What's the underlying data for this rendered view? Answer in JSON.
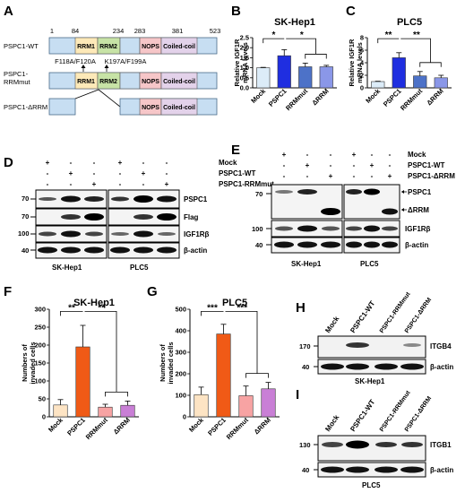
{
  "panels": {
    "A": "A",
    "B": "B",
    "C": "C",
    "D": "D",
    "E": "E",
    "F": "F",
    "G": "G",
    "H": "H",
    "I": "I"
  },
  "domains": {
    "wt_label": "PSPC1-WT",
    "mut_label_1": "PSPC1-",
    "mut_label_2": "RRMmut",
    "drrm_label": "PSPC1-ΔRRM",
    "positions": [
      "1",
      "84",
      "234",
      "283",
      "381",
      "523"
    ],
    "rrm1": "RRM1",
    "rrm2": "RRM2",
    "nops": "NOPS",
    "coiled": "Coiled-coil",
    "mut1": "F118A/F120A",
    "mut2": "K197A/F199A",
    "colors": {
      "rrm1": "#fde9b8",
      "rrm2": "#c7e3a6",
      "nops": "#f6c6c8",
      "coiled": "#e3d2ea",
      "bar": "#c7def2"
    }
  },
  "blots": {
    "D": {
      "rows": [
        "Mock",
        "PSPC1-WT",
        "PSPC1-RRMmut"
      ],
      "signs": [
        [
          "+",
          "-",
          "-",
          "+",
          "-",
          "-"
        ],
        [
          "-",
          "+",
          "-",
          "-",
          "+",
          "-"
        ],
        [
          "-",
          "-",
          "+",
          "-",
          "-",
          "+"
        ]
      ],
      "mw": [
        "70",
        "70",
        "100",
        "40"
      ],
      "bands": [
        "PSPC1",
        "Flag",
        "IGF1Rβ",
        "β-actin"
      ],
      "cells": [
        "SK-Hep1",
        "PLC5"
      ]
    },
    "E": {
      "rows": [
        "Mock",
        "PSPC1-WT",
        "PSPC1-ΔRRM"
      ],
      "signs": [
        [
          "+",
          "-",
          "-",
          "+",
          "-",
          "-"
        ],
        [
          "-",
          "+",
          "-",
          "-",
          "+",
          "-"
        ],
        [
          "-",
          "-",
          "+",
          "-",
          "-",
          "+"
        ]
      ],
      "mw": [
        "70",
        "100",
        "40"
      ],
      "bands": [
        "PSPC1",
        "ΔRRM",
        "IGF1Rβ",
        "β-actin"
      ],
      "cells": [
        "SK-Hep1",
        "PLC5"
      ]
    },
    "H": {
      "lanes": [
        "Mock",
        "PSPC1-WT",
        "PSPC1-RRMmut",
        "PSPC1-ΔRRM"
      ],
      "mw": [
        "170",
        "40"
      ],
      "bands": [
        "ITGB4",
        "β-actin"
      ],
      "cell": "SK-Hep1"
    },
    "I": {
      "lanes": [
        "Mock",
        "PSPC1-WT",
        "PSPC1-RRMmut",
        "PSPC1-ΔRRM"
      ],
      "mw": [
        "130",
        "40"
      ],
      "bands": [
        "ITGB1",
        "β-actin"
      ],
      "cell": "PLC5"
    }
  },
  "chart_data": [
    {
      "panel": "B",
      "type": "bar",
      "title": "SK-Hep1",
      "ylabel": "Relative IGF1R mRNA levels",
      "categories": [
        "Mock",
        "PSPC1",
        "RRMmut",
        "ΔRRM"
      ],
      "values": [
        1.0,
        1.6,
        1.05,
        1.05
      ],
      "errors": [
        0.02,
        0.3,
        0.18,
        0.07
      ],
      "ylim": [
        0,
        2.5
      ],
      "yticks": [
        "0.0",
        "0.5",
        "1.0",
        "1.5",
        "2.0",
        "2.5"
      ],
      "colors": [
        "#dcecf8",
        "#1f2ee0",
        "#4d72c8",
        "#8a97e8"
      ],
      "significance": [
        "*",
        "*"
      ]
    },
    {
      "panel": "C",
      "type": "bar",
      "title": "PLC5",
      "ylabel": "Relative IGF1R mRNA levels",
      "categories": [
        "Mock",
        "PSPC1",
        "RRMmut",
        "ΔRRM"
      ],
      "values": [
        1.0,
        4.8,
        1.9,
        1.6
      ],
      "errors": [
        0.05,
        0.8,
        0.7,
        0.4
      ],
      "ylim": [
        0,
        8
      ],
      "yticks": [
        "0",
        "2",
        "4",
        "6",
        "8"
      ],
      "colors": [
        "#dcecf8",
        "#1f2ee0",
        "#4d72c8",
        "#8a97e8"
      ],
      "significance": [
        "**",
        "**"
      ]
    },
    {
      "panel": "F",
      "type": "bar",
      "title": "SK-Hep1",
      "ylabel": "Numbers of invaded cells",
      "categories": [
        "Mock",
        "PSPC1",
        "RRMmut",
        "ΔRRM"
      ],
      "values": [
        33,
        195,
        27,
        32
      ],
      "errors": [
        15,
        60,
        8,
        12
      ],
      "ylim": [
        0,
        300
      ],
      "yticks": [
        "0",
        "50",
        "100",
        "150",
        "200",
        "250",
        "300"
      ],
      "colors": [
        "#fde4c4",
        "#f05a16",
        "#f7a3a3",
        "#c97fd6"
      ],
      "significance": [
        "**",
        "**"
      ]
    },
    {
      "panel": "G",
      "type": "bar",
      "title": "PLC5",
      "ylabel": "Numbers of invaded cells",
      "categories": [
        "Mock",
        "PSPC1",
        "RRMmut",
        "ΔRRM"
      ],
      "values": [
        103,
        385,
        98,
        130
      ],
      "errors": [
        35,
        45,
        45,
        30
      ],
      "ylim": [
        0,
        500
      ],
      "yticks": [
        "0",
        "100",
        "200",
        "300",
        "400",
        "500"
      ],
      "colors": [
        "#fde4c4",
        "#f05a16",
        "#f7a3a3",
        "#c97fd6"
      ],
      "significance": [
        "***",
        "***"
      ]
    }
  ]
}
